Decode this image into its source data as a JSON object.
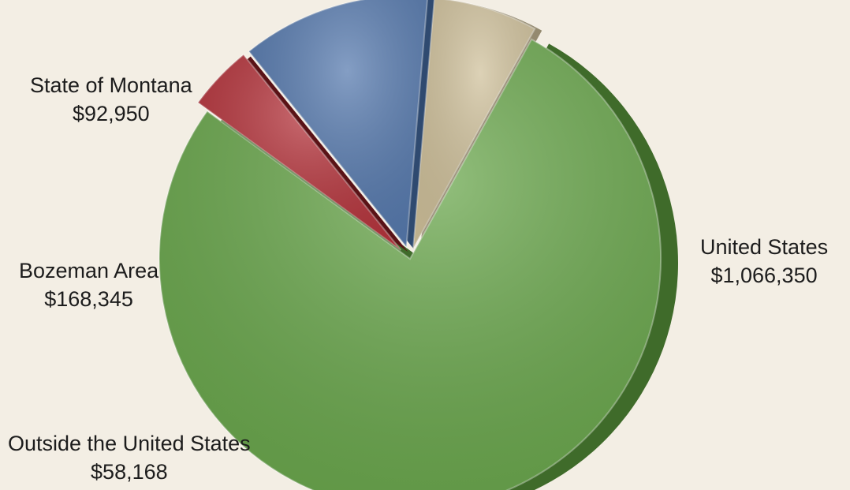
{
  "chart_data": {
    "type": "pie",
    "slices": [
      {
        "label": "United States",
        "value_label": "$1,066,350",
        "value": 1066350,
        "color": "#68a64a",
        "side": "#3f6b2a"
      },
      {
        "label": "Outside the United States",
        "value_label": "$58,168",
        "value": 58168,
        "color": "#b5323a",
        "side": "#5a1216"
      },
      {
        "label": "Bozeman Area",
        "value_label": "$168,345",
        "value": 168345,
        "color": "#5478ad",
        "side": "#2f4a70"
      },
      {
        "label": "State of Montana",
        "value_label": "$92,950",
        "value": 92950,
        "color": "#cfc09a",
        "side": "#948a70"
      }
    ],
    "legend": "none"
  }
}
